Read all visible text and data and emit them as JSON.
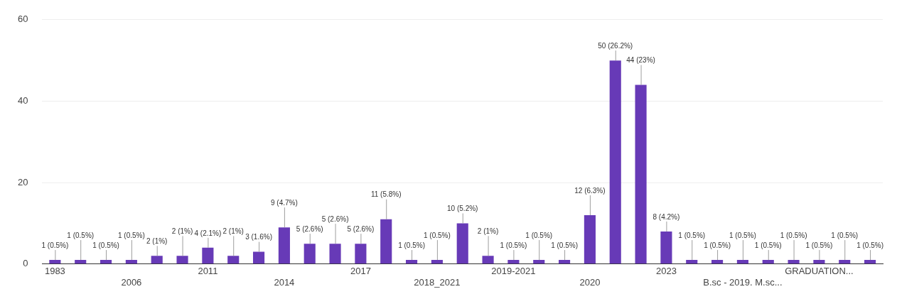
{
  "chart_data": {
    "type": "bar",
    "categories": [
      "1983",
      null,
      null,
      "2006",
      null,
      null,
      "2011",
      null,
      null,
      "2014",
      null,
      null,
      "2017",
      null,
      null,
      "2018_2021",
      null,
      null,
      "2019-2021",
      null,
      null,
      "2020",
      null,
      null,
      "2023",
      null,
      null,
      "B.sc - 2019. M.sc...",
      null,
      null,
      "GRADUATION...",
      null,
      null
    ],
    "values": [
      1,
      1,
      1,
      1,
      2,
      2,
      4,
      2,
      3,
      9,
      5,
      5,
      5,
      11,
      1,
      1,
      10,
      2,
      1,
      1,
      1,
      12,
      50,
      44,
      8,
      1,
      1,
      1,
      1,
      1,
      1,
      1,
      1
    ],
    "value_labels": [
      "1 (0.5%)",
      "1 (0.5%)",
      "1 (0.5%)",
      "1 (0.5%)",
      "2 (1%)",
      "2 (1%)",
      "4 (2.1%)",
      "2 (1%)",
      "3 (1.6%)",
      "9 (4.7%)",
      "5 (2.6%)",
      "5 (2.6%)",
      "5 (2.6%)",
      "11 (5.8%)",
      "1 (0.5%)",
      "1 (0.5%)",
      "10 (5.2%)",
      "2 (1%)",
      "1 (0.5%)",
      "1 (0.5%)",
      "1 (0.5%)",
      "12 (6.3%)",
      "50 (26.2%)",
      "44 (23%)",
      "8 (4.2%)",
      "1 (0.5%)",
      "1 (0.5%)",
      "1 (0.5%)",
      "1 (0.5%)",
      "1 (0.5%)",
      "1 (0.5%)",
      "1 (0.5%)",
      "1 (0.5%)"
    ],
    "color": "#673ab7",
    "ylim": [
      0,
      60
    ],
    "yticks": [
      0,
      20,
      40,
      60
    ],
    "grid": "y"
  }
}
